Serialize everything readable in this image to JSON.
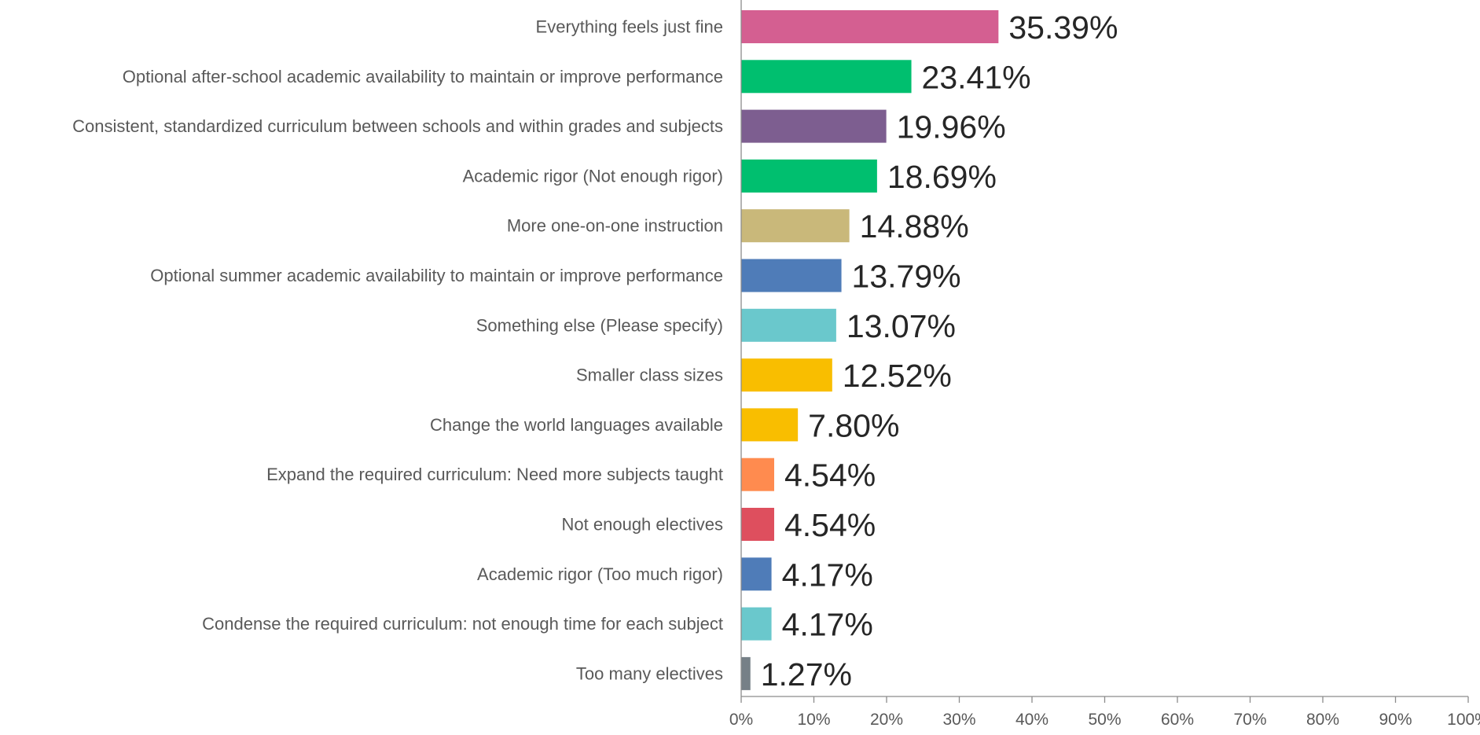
{
  "chart_data": {
    "type": "bar",
    "orientation": "horizontal",
    "title": "",
    "xlabel": "",
    "ylabel": "",
    "xlim": [
      0,
      100
    ],
    "x_ticks": [
      "0%",
      "10%",
      "20%",
      "30%",
      "40%",
      "50%",
      "60%",
      "70%",
      "80%",
      "90%",
      "100%"
    ],
    "grid": false,
    "legend": "none",
    "categories": [
      "Everything feels just fine",
      "Optional after-school academic availability to maintain or improve performance",
      "Consistent, standardized curriculum between schools and within grades and subjects",
      "Academic rigor (Not enough rigor)",
      "More one-on-one instruction",
      "Optional summer academic availability to maintain or improve performance",
      "Something else (Please specify)",
      "Smaller class sizes",
      "Change the world languages available",
      "Expand the required curriculum: Need more subjects taught",
      "Not enough electives",
      "Academic rigor (Too much rigor)",
      "Condense the required curriculum: not enough time for each subject",
      "Too many electives"
    ],
    "values": [
      35.39,
      23.41,
      19.96,
      18.69,
      14.88,
      13.79,
      13.07,
      12.52,
      7.8,
      4.54,
      4.54,
      4.17,
      4.17,
      1.27
    ],
    "value_labels": [
      "35.39%",
      "23.41%",
      "19.96%",
      "18.69%",
      "14.88%",
      "13.79%",
      "13.07%",
      "12.52%",
      "7.80%",
      "4.54%",
      "4.54%",
      "4.17%",
      "4.17%",
      "1.27%"
    ],
    "colors": [
      "#D45F91",
      "#00BF6F",
      "#7D5E90",
      "#00BF6F",
      "#C9B87A",
      "#4F7CB8",
      "#6AC8CC",
      "#F9BE00",
      "#F9BE00",
      "#FF8B4F",
      "#DE4F5E",
      "#4F7CB8",
      "#6AC8CC",
      "#768087"
    ],
    "axis_color": "#8C8C8C"
  }
}
